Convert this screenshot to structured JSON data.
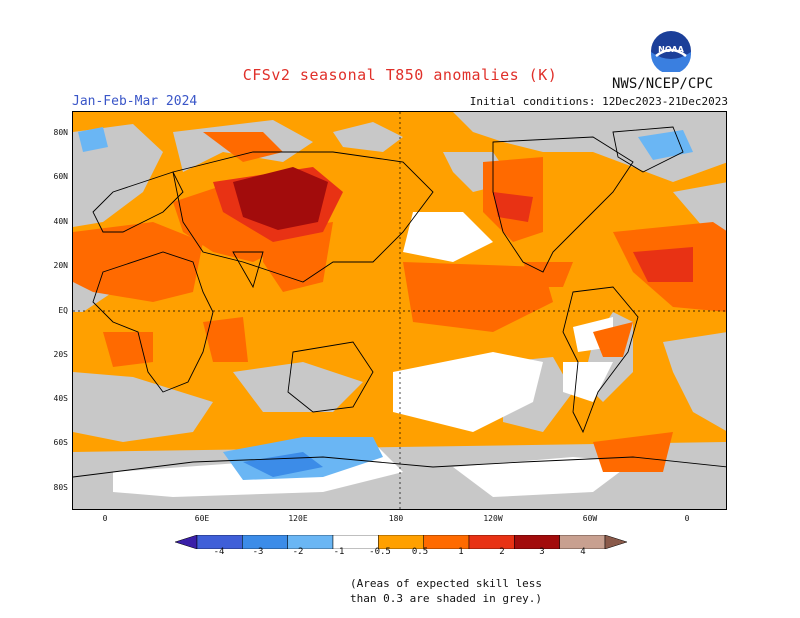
{
  "title": "CFSv2 seasonal T850 anomalies (K)",
  "season": "Jan-Feb-Mar 2024",
  "agency": "NWS/NCEP/CPC",
  "initial_conditions": "Initial conditions: 12Dec2023-21Dec2023",
  "logo_text": "NOAA",
  "lat_labels": [
    "80N",
    "60N",
    "40N",
    "20N",
    "EQ",
    "20S",
    "40S",
    "60S",
    "80S"
  ],
  "lon_labels": [
    "0",
    "60E",
    "120E",
    "180",
    "120W",
    "60W",
    "0"
  ],
  "colorbar": {
    "labels": [
      "-4",
      "-3",
      "-2",
      "-1",
      "-0.5",
      "0.5",
      "1",
      "2",
      "3",
      "4"
    ],
    "colors": [
      "#3a1fa8",
      "#3f5fd8",
      "#3c8ce8",
      "#6ab6f4",
      "#ffffff",
      "#ffa000",
      "#ff6a00",
      "#e83214",
      "#a20c0c",
      "#c8a090",
      "#8a5a4a"
    ],
    "no_skill_color": "#c8c8c8"
  },
  "note_line1": "(Areas of expected skill less",
  "note_line2": "than 0.3 are shaded in grey.)"
}
